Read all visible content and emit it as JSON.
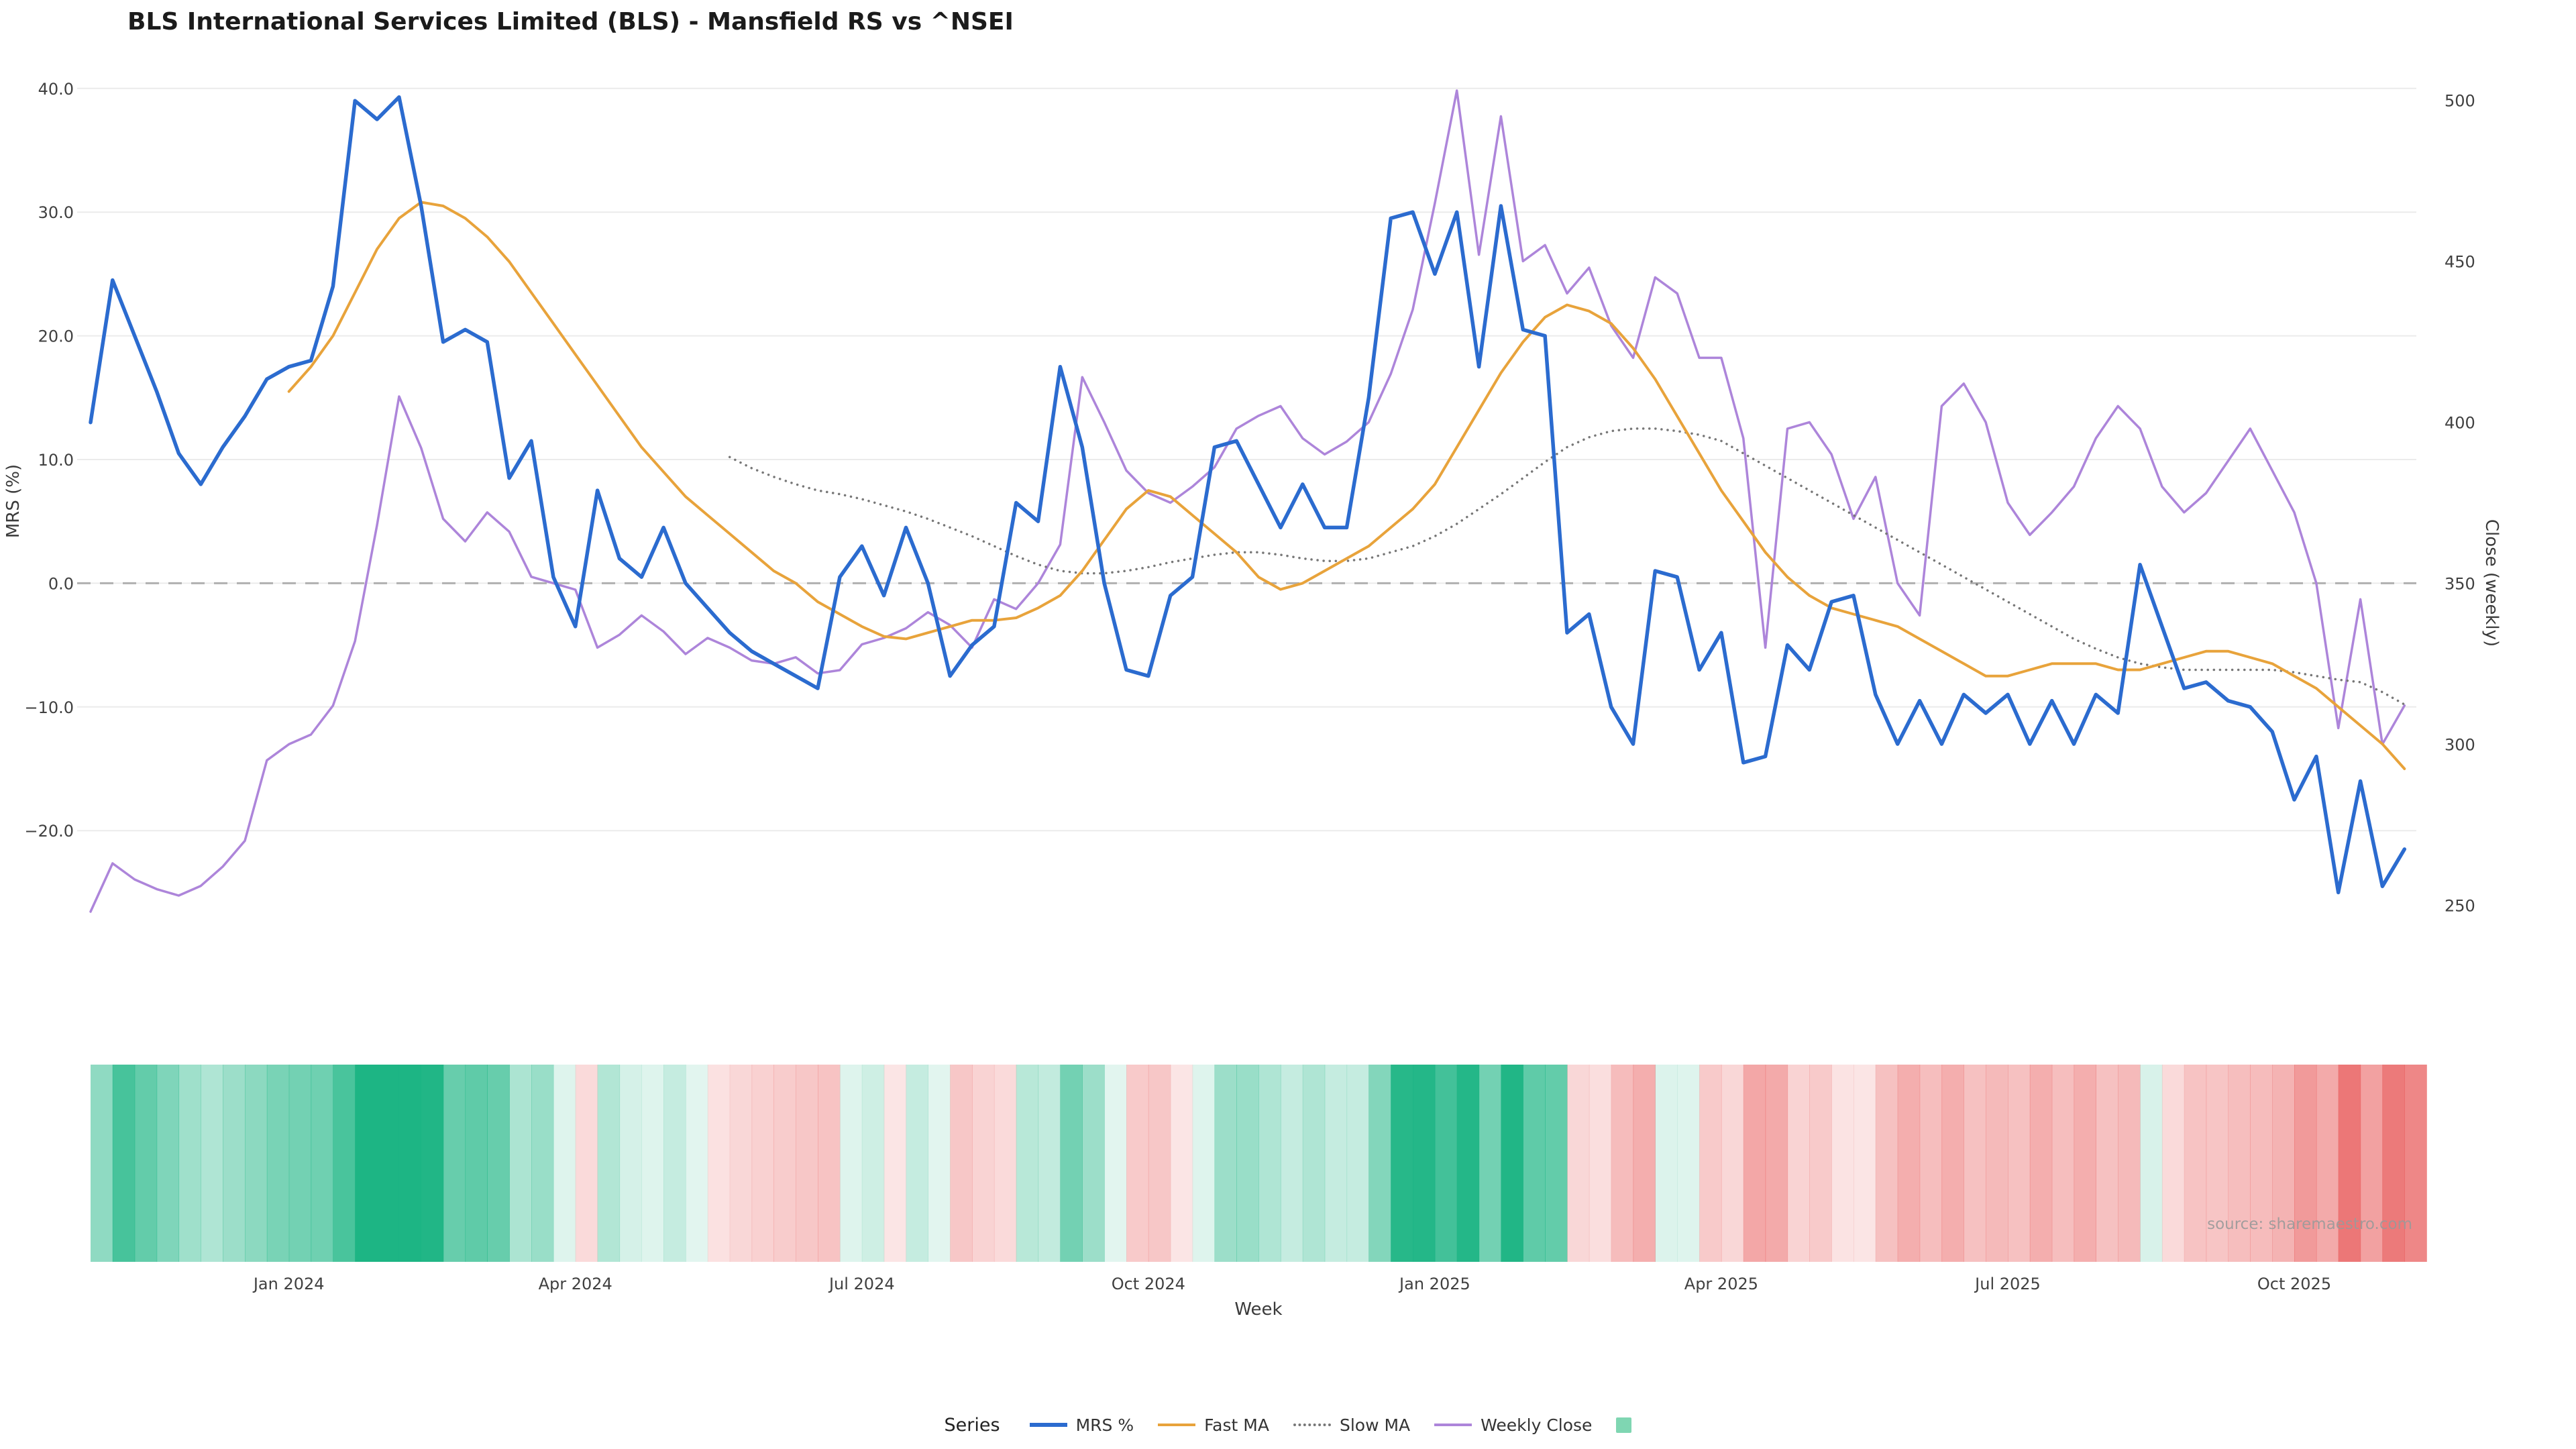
{
  "title": "BLS International Services Limited (BLS) - Mansfield RS vs ^NSEI",
  "source": "source: sharemaestro.com",
  "axes": {
    "left_label": "MRS (%)",
    "right_label": "Close (weekly)",
    "x_label": "Week"
  },
  "colors": {
    "grid": "#ebebeb",
    "zero_line": "#b0b0b0",
    "mrs": "#2b6bcf",
    "fast_ma": "#e8a33b",
    "slow_ma": "#777777",
    "weekly_close": "#ad85da",
    "heatmap_positive": "#1db584",
    "heatmap_negative": "#e85c5c",
    "legend_square": "#7fd6b2"
  },
  "legend": {
    "label": "Series",
    "entries": [
      {
        "label": "MRS %",
        "swatch": "line",
        "color": "#2b6bcf",
        "weight": 6
      },
      {
        "label": "Fast MA",
        "swatch": "line",
        "color": "#e8a33b",
        "weight": 4
      },
      {
        "label": "Slow MA",
        "swatch": "dotted",
        "color": "#777777",
        "weight": 4
      },
      {
        "label": "Weekly Close",
        "swatch": "line",
        "color": "#ad85da",
        "weight": 4
      },
      {
        "label": "",
        "swatch": "square",
        "color": "#7fd6b2"
      }
    ]
  },
  "chart_data": {
    "type": "line",
    "title": "BLS International Services Limited (BLS) - Mansfield RS vs ^NSEI",
    "xlabel": "Week",
    "ylabel_left": "MRS (%)",
    "ylabel_right": "Close (weekly)",
    "n_weeks": 106,
    "x_tick_indices": [
      9,
      22,
      35,
      48,
      61,
      74,
      87,
      100
    ],
    "x_tick_labels": [
      "Jan 2024",
      "Apr 2024",
      "Jul 2024",
      "Oct 2024",
      "Jan 2025",
      "Apr 2025",
      "Jul 2025",
      "Oct 2025"
    ],
    "left_axis": {
      "tick_values": [
        40,
        30,
        20,
        10,
        0,
        -10,
        -20
      ],
      "tick_labels": [
        "40.0",
        "30.0",
        "20.0",
        "10.0",
        "0.0",
        "−10.0",
        "−20.0"
      ],
      "range": [
        -27.5,
        40.5
      ]
    },
    "right_axis": {
      "tick_values": [
        500,
        450,
        400,
        350,
        300,
        250
      ],
      "tick_labels": [
        "500",
        "450",
        "400",
        "350",
        "300",
        "250"
      ],
      "range": [
        237,
        512
      ]
    },
    "zero_line": 0,
    "heatmap": {
      "source_series": "MRS %",
      "positive_color": "#1db584",
      "negative_color": "#e85c5c",
      "note": "weekly strip colored by MRS % sign and magnitude"
    },
    "series": [
      {
        "name": "MRS %",
        "axis": "left",
        "color": "#2b6bcf",
        "style": "solid",
        "width": 5.5,
        "values": [
          13,
          24.5,
          20,
          15.5,
          10.5,
          8,
          11,
          13.5,
          16.5,
          17.5,
          18,
          24,
          39,
          37.5,
          39.3,
          30.5,
          19.5,
          20.5,
          19.5,
          8.5,
          11.5,
          0.5,
          -3.5,
          7.5,
          2,
          0.5,
          4.5,
          0,
          -2,
          -4,
          -5.5,
          -6.5,
          -7.5,
          -8.5,
          0.5,
          3,
          -1,
          4.5,
          0,
          -7.5,
          -5,
          -3.5,
          6.5,
          5,
          17.5,
          11,
          0,
          -7,
          -7.5,
          -1,
          0.5,
          11,
          11.5,
          8,
          4.5,
          8,
          4.5,
          4.5,
          15,
          29.5,
          30,
          25,
          30,
          17.5,
          30.5,
          20.5,
          20,
          -4,
          -2.5,
          -10,
          -13,
          1,
          0.5,
          -7,
          -4,
          -14.5,
          -14,
          -5,
          -7,
          -1.5,
          -1,
          -9,
          -13,
          -9.5,
          -13,
          -9,
          -10.5,
          -9,
          -13,
          -9.5,
          -13,
          -9,
          -10.5,
          1.5,
          -3.5,
          -8.5,
          -8,
          -9.5,
          -10,
          -12,
          -17.5,
          -14,
          -25,
          -16,
          -24.5,
          -21.5
        ]
      },
      {
        "name": "Fast MA",
        "axis": "left",
        "color": "#e8a33b",
        "style": "solid",
        "width": 4,
        "values": [
          null,
          null,
          null,
          null,
          null,
          null,
          null,
          null,
          null,
          15.5,
          17.5,
          20,
          23.5,
          27,
          29.5,
          30.8,
          30.5,
          29.5,
          28,
          26,
          23.5,
          21,
          18.5,
          16,
          13.5,
          11,
          9,
          7,
          5.5,
          4,
          2.5,
          1,
          0,
          -1.5,
          -2.5,
          -3.5,
          -4.3,
          -4.5,
          -4,
          -3.5,
          -3,
          -3,
          -2.8,
          -2,
          -1,
          1,
          3.5,
          6,
          7.5,
          7,
          5.5,
          4,
          2.5,
          0.5,
          -0.5,
          0,
          1,
          2,
          3,
          4.5,
          6,
          8,
          11,
          14,
          17,
          19.5,
          21.5,
          22.5,
          22,
          21,
          19,
          16.5,
          13.5,
          10.5,
          7.5,
          5,
          2.5,
          0.5,
          -1,
          -2,
          -2.5,
          -3,
          -3.5,
          -4.5,
          -5.5,
          -6.5,
          -7.5,
          -7.5,
          -7,
          -6.5,
          -6.5,
          -6.5,
          -7,
          -7,
          -6.5,
          -6,
          -5.5,
          -5.5,
          -6,
          -6.5,
          -7.5,
          -8.5,
          -10,
          -11.5,
          -13,
          -15
        ]
      },
      {
        "name": "Slow MA",
        "axis": "left",
        "color": "#777777",
        "style": "dotted",
        "width": 3.5,
        "values": [
          null,
          null,
          null,
          null,
          null,
          null,
          null,
          null,
          null,
          null,
          null,
          null,
          null,
          null,
          null,
          null,
          null,
          null,
          null,
          null,
          null,
          null,
          null,
          null,
          null,
          null,
          null,
          null,
          null,
          10.2,
          9.3,
          8.6,
          8,
          7.5,
          7.2,
          6.8,
          6.3,
          5.8,
          5.2,
          4.5,
          3.8,
          3,
          2.2,
          1.5,
          1,
          0.8,
          0.8,
          1,
          1.3,
          1.7,
          2,
          2.3,
          2.5,
          2.5,
          2.3,
          2,
          1.8,
          1.8,
          2,
          2.5,
          3,
          3.8,
          4.8,
          6,
          7.2,
          8.5,
          9.8,
          11,
          11.8,
          12.3,
          12.5,
          12.5,
          12.3,
          12,
          11.5,
          10.5,
          9.5,
          8.5,
          7.5,
          6.5,
          5.5,
          4.5,
          3.5,
          2.5,
          1.5,
          0.5,
          -0.5,
          -1.5,
          -2.5,
          -3.5,
          -4.5,
          -5.3,
          -6,
          -6.5,
          -6.8,
          -7,
          -7,
          -7,
          -7,
          -7,
          -7.2,
          -7.5,
          -7.8,
          -8,
          -8.8,
          -9.8
        ]
      },
      {
        "name": "Weekly Close",
        "axis": "right",
        "color": "#ad85da",
        "style": "solid",
        "width": 3.5,
        "values": [
          248,
          263,
          258,
          255,
          253,
          256,
          262,
          270,
          295,
          300,
          303,
          312,
          332,
          368,
          408,
          392,
          370,
          363,
          372,
          366,
          352,
          350,
          348,
          330,
          334,
          340,
          335,
          328,
          333,
          330,
          326,
          325,
          327,
          322,
          323,
          331,
          333,
          336,
          341,
          337,
          330,
          345,
          342,
          350,
          362,
          414,
          400,
          385,
          378,
          375,
          380,
          386,
          398,
          402,
          405,
          395,
          390,
          394,
          400,
          415,
          435,
          468,
          503,
          452,
          495,
          450,
          455,
          440,
          448,
          430,
          420,
          445,
          440,
          420,
          420,
          395,
          330,
          398,
          400,
          390,
          370,
          383,
          350,
          340,
          405,
          412,
          400,
          375,
          365,
          372,
          380,
          395,
          405,
          398,
          380,
          372,
          378,
          388,
          398,
          385,
          372,
          350,
          305,
          345,
          300,
          312
        ]
      }
    ]
  }
}
